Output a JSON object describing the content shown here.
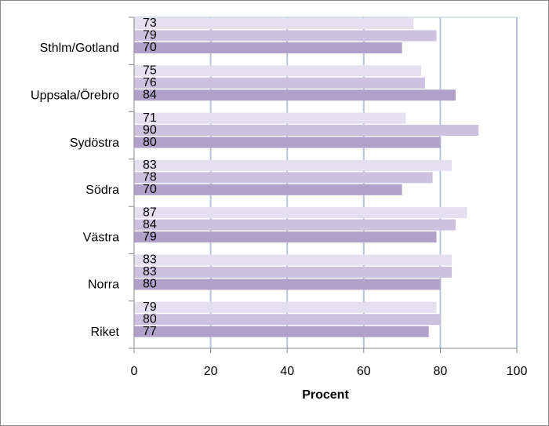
{
  "chart_data": {
    "type": "hbar",
    "x_label": "Procent",
    "categories": [
      "Sthlm/Gotland",
      "Uppsala/Örebro",
      "Sydöstra",
      "Södra",
      "Västra",
      "Norra",
      "Riket"
    ],
    "series": [
      {
        "color": "#e5e0ef",
        "values": [
          73,
          75,
          71,
          83,
          87,
          83,
          79
        ]
      },
      {
        "color": "#ccc1de",
        "values": [
          79,
          76,
          90,
          78,
          84,
          83,
          80
        ]
      },
      {
        "color": "#b1a0ca",
        "values": [
          70,
          84,
          80,
          70,
          79,
          80,
          77
        ]
      }
    ],
    "xlim": [
      0,
      100
    ],
    "xticks": [
      0,
      20,
      40,
      60,
      80,
      100
    ],
    "grid": true
  }
}
